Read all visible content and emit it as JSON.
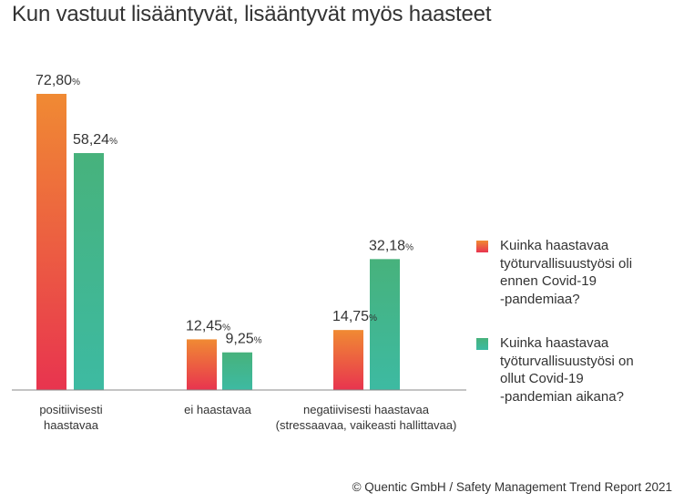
{
  "title": "Kun vastuut lisääntyvät, lisääntyvät myös haasteet",
  "footer": "© Quentic GmbH / Safety Management Trend Report 2021",
  "colors": {
    "before_top": "#f08a33",
    "before_bottom": "#e8344f",
    "during_top": "#47b27c",
    "during_bottom": "#3dbaa2",
    "axis": "#888888",
    "text": "#333333"
  },
  "chart_data": {
    "type": "bar",
    "categories": [
      [
        "positiivisesti",
        "haastavaa"
      ],
      [
        "ei haastavaa"
      ],
      [
        "negatiivisesti haastavaa",
        "(stressaavaa, vaikeasti hallittavaa)"
      ]
    ],
    "series": [
      {
        "name": "Kuinka haastavaa\ntyöturvallisuustyösi oli\nennen Covid-19\n-pandemiaa?",
        "values": [
          72.8,
          12.45,
          14.75
        ],
        "labels": [
          "72,80",
          "12,45",
          "14,75"
        ]
      },
      {
        "name": "Kuinka haastavaa\ntyöturvallisuustyösi on\nollut Covid-19\n-pandemian aikana?",
        "values": [
          58.24,
          9.25,
          32.18
        ],
        "labels": [
          "58,24",
          "9,25",
          "32,18"
        ]
      }
    ],
    "value_suffix": "%",
    "ylim": [
      0,
      100
    ],
    "grid": false,
    "legend_position": "right"
  }
}
